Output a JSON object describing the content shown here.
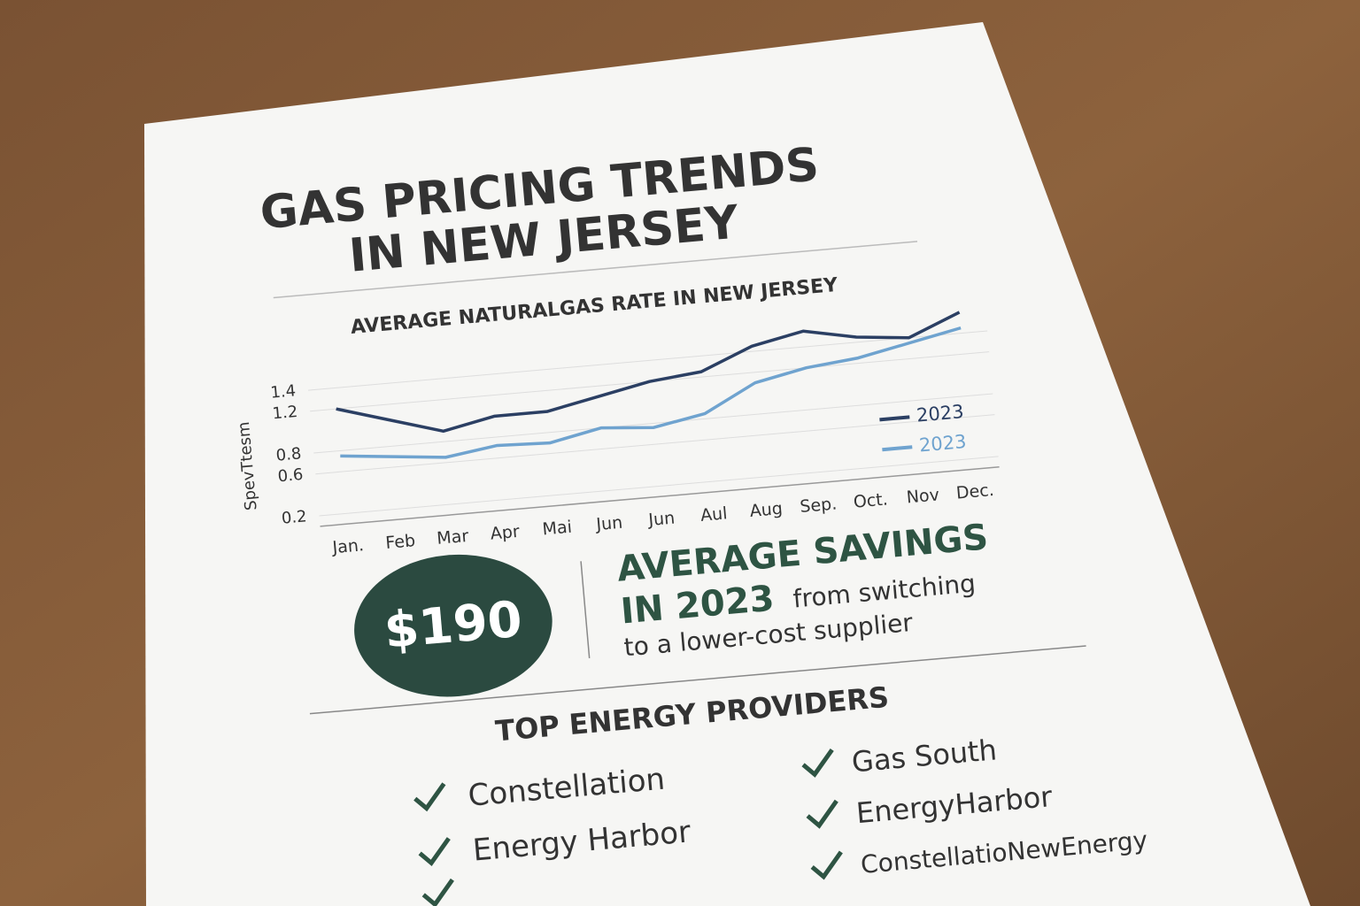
{
  "header": {
    "title_lines": [
      "GAS PRICING TRENDS",
      "IN NEW JERSEY"
    ]
  },
  "chart_data": {
    "type": "line",
    "title": "AVERAGE NATURALGAS RATE IN NEW JERSEY",
    "y_label": "SpevTtesm",
    "categories": [
      "Jan.",
      "Feb",
      "Mar",
      "Apr",
      "Mai",
      "Jun",
      "Jun",
      "Aul",
      "Aug",
      "Sep.",
      "Oct.",
      "Nov",
      "Dec."
    ],
    "series": [
      {
        "name": "2023",
        "color": "#2b3f63",
        "values": [
          1.2,
          1.05,
          0.9,
          1.0,
          1.0,
          1.1,
          1.2,
          1.25,
          1.45,
          1.55,
          1.45,
          1.4,
          1.6
        ]
      },
      {
        "name": "2023",
        "color": "#6fa3cf",
        "values": [
          0.75,
          0.7,
          0.65,
          0.72,
          0.7,
          0.8,
          0.76,
          0.85,
          1.1,
          1.2,
          1.25,
          1.35,
          1.45
        ]
      }
    ],
    "ylim": [
      0.1,
      1.7
    ],
    "yticks": [
      0.2,
      0.6,
      0.8,
      1.2,
      1.4
    ],
    "grid": true,
    "legend": "right"
  },
  "savings": {
    "amount": "$190",
    "heading_lines": [
      "AVERAGE SAVINGS",
      "IN 2023"
    ],
    "text_lines": [
      "from switching",
      "to a lower-cost supplier"
    ]
  },
  "providers": {
    "title": "TOP ENERGY PROVIDERS",
    "left": [
      "Constellation",
      "Energy Harbor"
    ],
    "right": [
      "Gas South",
      "EnergyHarbor",
      "ConstellatioNewEnergy"
    ]
  }
}
